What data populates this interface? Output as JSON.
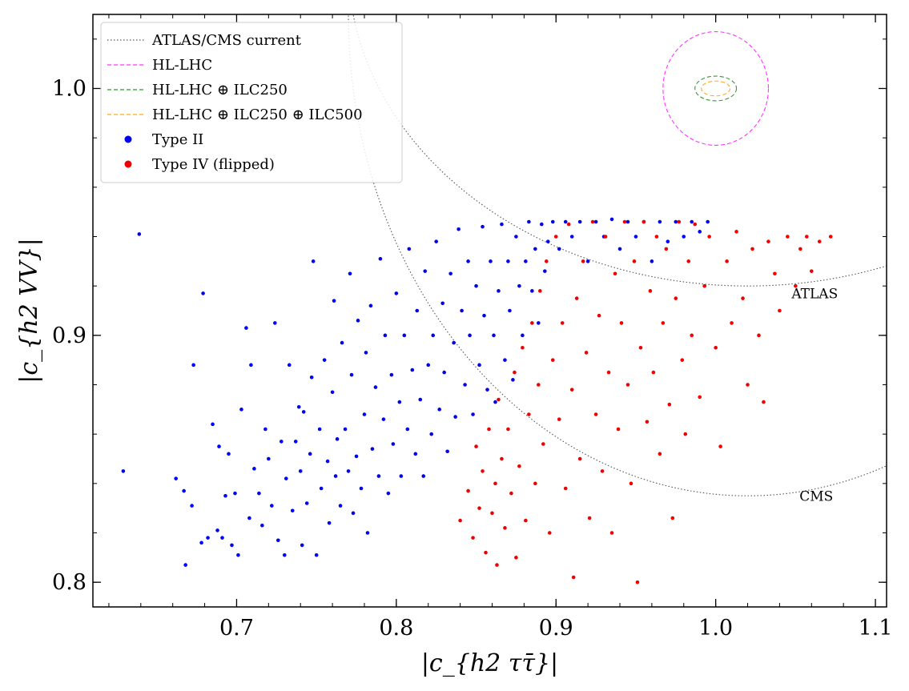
{
  "chart_data": {
    "type": "scatter",
    "title": "",
    "xlabel": "|c_{h2 ττ̄}|",
    "ylabel": "|c_{h2 VV}|",
    "xlim": [
      0.61,
      1.107
    ],
    "ylim": [
      0.79,
      1.03
    ],
    "x_ticks": [
      0.7,
      0.8,
      0.9,
      1.0,
      1.1
    ],
    "x_tick_labels": [
      "0.7",
      "0.8",
      "0.9",
      "1.0",
      "1.1"
    ],
    "y_ticks": [
      0.8,
      0.9,
      1.0
    ],
    "y_tick_labels": [
      "0.8",
      "0.9",
      "1.0"
    ],
    "x_minor_step": 0.02,
    "y_minor_step": 0.02,
    "legend_position": "top-left",
    "legend": [
      {
        "label": "ATLAS/CMS current",
        "style": "dotted",
        "color": "#555555"
      },
      {
        "label": "HL-LHC",
        "style": "dashed",
        "color": "#ff33ff"
      },
      {
        "label": "HL-LHC ⊕ ILC250",
        "style": "dashed",
        "color": "#339933"
      },
      {
        "label": "HL-LHC ⊕ ILC250 ⊕ ILC500",
        "style": "dashed",
        "color": "#ffaa22"
      },
      {
        "label": "Type II",
        "style": "marker",
        "color": "#0000ee"
      },
      {
        "label": "Type IV (flipped)",
        "style": "marker",
        "color": "#ee0000"
      }
    ],
    "annotations": [
      {
        "text": "ATLAS",
        "x": 1.062,
        "y": 0.915
      },
      {
        "text": "CMS",
        "x": 1.063,
        "y": 0.833
      }
    ],
    "contours": [
      {
        "name": "ATLAS",
        "style": "dotted",
        "color": "#555555",
        "center": [
          1.02,
          1.05
        ],
        "radius": [
          0.25,
          0.13
        ]
      },
      {
        "name": "CMS",
        "style": "dotted",
        "color": "#555555",
        "center": [
          1.02,
          1.03
        ],
        "radius": [
          0.25,
          0.195
        ]
      },
      {
        "name": "HL-LHC",
        "style": "dashed",
        "color": "#ff33ff",
        "center": [
          1.0,
          1.0
        ],
        "radius": [
          0.033,
          0.023
        ]
      },
      {
        "name": "HL-LHC ⊕ ILC250",
        "style": "dashed",
        "color": "#339933",
        "center": [
          1.0,
          1.0
        ],
        "radius": [
          0.013,
          0.005
        ]
      },
      {
        "name": "HL-LHC ⊕ ILC250 ⊕ ILC500",
        "style": "dashed",
        "color": "#ffaa22",
        "center": [
          1.0,
          1.0
        ],
        "radius": [
          0.009,
          0.003
        ]
      }
    ],
    "series": [
      {
        "name": "Type II",
        "color": "#0000ee",
        "points": [
          [
            0.629,
            0.845
          ],
          [
            0.639,
            0.941
          ],
          [
            0.662,
            0.842
          ],
          [
            0.667,
            0.837
          ],
          [
            0.668,
            0.807
          ],
          [
            0.672,
            0.831
          ],
          [
            0.673,
            0.888
          ],
          [
            0.678,
            0.816
          ],
          [
            0.679,
            0.917
          ],
          [
            0.682,
            0.818
          ],
          [
            0.685,
            0.864
          ],
          [
            0.688,
            0.821
          ],
          [
            0.689,
            0.855
          ],
          [
            0.691,
            0.818
          ],
          [
            0.693,
            0.835
          ],
          [
            0.695,
            0.852
          ],
          [
            0.697,
            0.815
          ],
          [
            0.699,
            0.836
          ],
          [
            0.701,
            0.811
          ],
          [
            0.703,
            0.87
          ],
          [
            0.706,
            0.903
          ],
          [
            0.708,
            0.826
          ],
          [
            0.709,
            0.888
          ],
          [
            0.711,
            0.846
          ],
          [
            0.714,
            0.836
          ],
          [
            0.716,
            0.823
          ],
          [
            0.718,
            0.862
          ],
          [
            0.72,
            0.85
          ],
          [
            0.722,
            0.831
          ],
          [
            0.724,
            0.905
          ],
          [
            0.726,
            0.817
          ],
          [
            0.728,
            0.857
          ],
          [
            0.73,
            0.811
          ],
          [
            0.731,
            0.842
          ],
          [
            0.733,
            0.888
          ],
          [
            0.735,
            0.829
          ],
          [
            0.737,
            0.857
          ],
          [
            0.739,
            0.871
          ],
          [
            0.74,
            0.845
          ],
          [
            0.741,
            0.815
          ],
          [
            0.742,
            0.869
          ],
          [
            0.744,
            0.832
          ],
          [
            0.746,
            0.852
          ],
          [
            0.747,
            0.883
          ],
          [
            0.748,
            0.93
          ],
          [
            0.75,
            0.811
          ],
          [
            0.752,
            0.862
          ],
          [
            0.753,
            0.838
          ],
          [
            0.755,
            0.89
          ],
          [
            0.757,
            0.849
          ],
          [
            0.758,
            0.824
          ],
          [
            0.76,
            0.877
          ],
          [
            0.761,
            0.914
          ],
          [
            0.762,
            0.843
          ],
          [
            0.763,
            0.858
          ],
          [
            0.765,
            0.831
          ],
          [
            0.766,
            0.897
          ],
          [
            0.768,
            0.862
          ],
          [
            0.77,
            0.845
          ],
          [
            0.771,
            0.925
          ],
          [
            0.772,
            0.884
          ],
          [
            0.773,
            0.828
          ],
          [
            0.775,
            0.851
          ],
          [
            0.776,
            0.906
          ],
          [
            0.778,
            0.838
          ],
          [
            0.78,
            0.868
          ],
          [
            0.781,
            0.893
          ],
          [
            0.782,
            0.82
          ],
          [
            0.784,
            0.912
          ],
          [
            0.785,
            0.854
          ],
          [
            0.787,
            0.879
          ],
          [
            0.789,
            0.843
          ],
          [
            0.79,
            0.931
          ],
          [
            0.792,
            0.866
          ],
          [
            0.793,
            0.9
          ],
          [
            0.795,
            0.836
          ],
          [
            0.797,
            0.884
          ],
          [
            0.798,
            0.856
          ],
          [
            0.8,
            0.917
          ],
          [
            0.802,
            0.873
          ],
          [
            0.803,
            0.843
          ],
          [
            0.805,
            0.9
          ],
          [
            0.807,
            0.862
          ],
          [
            0.808,
            0.935
          ],
          [
            0.81,
            0.886
          ],
          [
            0.812,
            0.852
          ],
          [
            0.813,
            0.91
          ],
          [
            0.815,
            0.874
          ],
          [
            0.817,
            0.843
          ],
          [
            0.818,
            0.926
          ],
          [
            0.82,
            0.888
          ],
          [
            0.822,
            0.86
          ],
          [
            0.823,
            0.9
          ],
          [
            0.825,
            0.938
          ],
          [
            0.827,
            0.87
          ],
          [
            0.829,
            0.913
          ],
          [
            0.83,
            0.885
          ],
          [
            0.832,
            0.853
          ],
          [
            0.834,
            0.925
          ],
          [
            0.836,
            0.897
          ],
          [
            0.837,
            0.867
          ],
          [
            0.839,
            0.943
          ],
          [
            0.841,
            0.91
          ],
          [
            0.843,
            0.88
          ],
          [
            0.845,
            0.93
          ],
          [
            0.846,
            0.9
          ],
          [
            0.848,
            0.868
          ],
          [
            0.85,
            0.92
          ],
          [
            0.852,
            0.888
          ],
          [
            0.854,
            0.944
          ],
          [
            0.855,
            0.908
          ],
          [
            0.857,
            0.878
          ],
          [
            0.859,
            0.93
          ],
          [
            0.861,
            0.9
          ],
          [
            0.862,
            0.873
          ],
          [
            0.864,
            0.918
          ],
          [
            0.866,
            0.945
          ],
          [
            0.868,
            0.89
          ],
          [
            0.87,
            0.93
          ],
          [
            0.871,
            0.91
          ],
          [
            0.873,
            0.882
          ],
          [
            0.875,
            0.94
          ],
          [
            0.877,
            0.92
          ],
          [
            0.879,
            0.9
          ],
          [
            0.881,
            0.93
          ],
          [
            0.883,
            0.946
          ],
          [
            0.885,
            0.918
          ],
          [
            0.887,
            0.935
          ],
          [
            0.889,
            0.905
          ],
          [
            0.891,
            0.945
          ],
          [
            0.893,
            0.926
          ],
          [
            0.895,
            0.938
          ],
          [
            0.898,
            0.946
          ],
          [
            0.902,
            0.935
          ],
          [
            0.906,
            0.946
          ],
          [
            0.91,
            0.94
          ],
          [
            0.915,
            0.946
          ],
          [
            0.92,
            0.93
          ],
          [
            0.925,
            0.946
          ],
          [
            0.93,
            0.94
          ],
          [
            0.935,
            0.947
          ],
          [
            0.94,
            0.935
          ],
          [
            0.945,
            0.946
          ],
          [
            0.95,
            0.94
          ],
          [
            0.955,
            0.946
          ],
          [
            0.96,
            0.93
          ],
          [
            0.965,
            0.946
          ],
          [
            0.97,
            0.938
          ],
          [
            0.975,
            0.946
          ],
          [
            0.98,
            0.94
          ],
          [
            0.985,
            0.946
          ],
          [
            0.99,
            0.942
          ],
          [
            0.995,
            0.946
          ]
        ]
      },
      {
        "name": "Type IV (flipped)",
        "color": "#ee0000",
        "points": [
          [
            0.84,
            0.825
          ],
          [
            0.845,
            0.837
          ],
          [
            0.848,
            0.818
          ],
          [
            0.85,
            0.855
          ],
          [
            0.852,
            0.83
          ],
          [
            0.854,
            0.845
          ],
          [
            0.856,
            0.812
          ],
          [
            0.858,
            0.862
          ],
          [
            0.86,
            0.828
          ],
          [
            0.862,
            0.84
          ],
          [
            0.863,
            0.807
          ],
          [
            0.864,
            0.874
          ],
          [
            0.866,
            0.85
          ],
          [
            0.868,
            0.822
          ],
          [
            0.87,
            0.862
          ],
          [
            0.872,
            0.836
          ],
          [
            0.874,
            0.885
          ],
          [
            0.875,
            0.81
          ],
          [
            0.877,
            0.847
          ],
          [
            0.879,
            0.895
          ],
          [
            0.881,
            0.825
          ],
          [
            0.883,
            0.868
          ],
          [
            0.885,
            0.905
          ],
          [
            0.887,
            0.84
          ],
          [
            0.889,
            0.88
          ],
          [
            0.89,
            0.918
          ],
          [
            0.892,
            0.856
          ],
          [
            0.894,
            0.93
          ],
          [
            0.896,
            0.82
          ],
          [
            0.898,
            0.89
          ],
          [
            0.9,
            0.94
          ],
          [
            0.902,
            0.866
          ],
          [
            0.904,
            0.905
          ],
          [
            0.906,
            0.838
          ],
          [
            0.908,
            0.945
          ],
          [
            0.91,
            0.878
          ],
          [
            0.911,
            0.802
          ],
          [
            0.913,
            0.915
          ],
          [
            0.915,
            0.85
          ],
          [
            0.917,
            0.93
          ],
          [
            0.919,
            0.893
          ],
          [
            0.921,
            0.826
          ],
          [
            0.923,
            0.946
          ],
          [
            0.925,
            0.868
          ],
          [
            0.927,
            0.908
          ],
          [
            0.929,
            0.845
          ],
          [
            0.931,
            0.94
          ],
          [
            0.933,
            0.885
          ],
          [
            0.935,
            0.82
          ],
          [
            0.937,
            0.925
          ],
          [
            0.939,
            0.862
          ],
          [
            0.941,
            0.905
          ],
          [
            0.943,
            0.946
          ],
          [
            0.945,
            0.88
          ],
          [
            0.947,
            0.84
          ],
          [
            0.949,
            0.93
          ],
          [
            0.951,
            0.8
          ],
          [
            0.953,
            0.895
          ],
          [
            0.955,
            0.946
          ],
          [
            0.957,
            0.865
          ],
          [
            0.959,
            0.918
          ],
          [
            0.961,
            0.885
          ],
          [
            0.963,
            0.94
          ],
          [
            0.965,
            0.852
          ],
          [
            0.967,
            0.905
          ],
          [
            0.969,
            0.935
          ],
          [
            0.971,
            0.872
          ],
          [
            0.973,
            0.826
          ],
          [
            0.975,
            0.915
          ],
          [
            0.977,
            0.946
          ],
          [
            0.979,
            0.89
          ],
          [
            0.981,
            0.86
          ],
          [
            0.983,
            0.93
          ],
          [
            0.985,
            0.9
          ],
          [
            0.987,
            0.945
          ],
          [
            0.99,
            0.875
          ],
          [
            0.993,
            0.92
          ],
          [
            0.996,
            0.94
          ],
          [
            1.0,
            0.895
          ],
          [
            1.003,
            0.855
          ],
          [
            1.007,
            0.93
          ],
          [
            1.01,
            0.905
          ],
          [
            1.013,
            0.942
          ],
          [
            1.017,
            0.915
          ],
          [
            1.02,
            0.88
          ],
          [
            1.023,
            0.935
          ],
          [
            1.027,
            0.9
          ],
          [
            1.03,
            0.873
          ],
          [
            1.033,
            0.938
          ],
          [
            1.037,
            0.925
          ],
          [
            1.04,
            0.91
          ],
          [
            1.045,
            0.94
          ],
          [
            1.05,
            0.92
          ],
          [
            1.053,
            0.935
          ],
          [
            1.057,
            0.94
          ],
          [
            1.06,
            0.926
          ],
          [
            1.065,
            0.938
          ],
          [
            1.072,
            0.94
          ]
        ]
      }
    ]
  }
}
